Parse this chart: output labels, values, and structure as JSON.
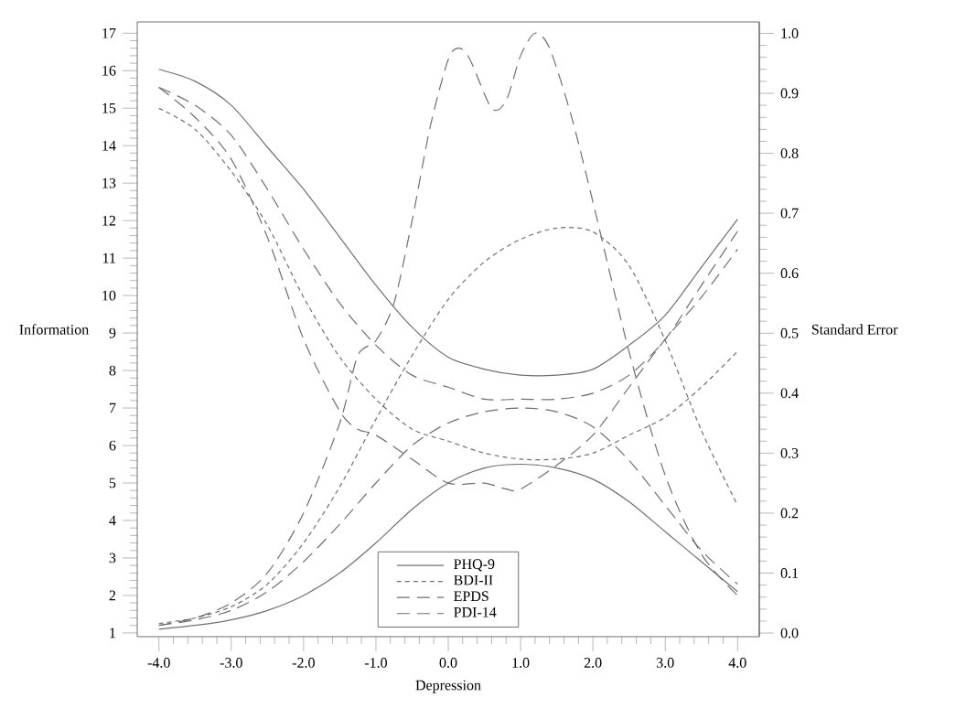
{
  "chart_data": {
    "type": "line",
    "xlabel": "Depression",
    "ylabel": "Information",
    "y2label": "Standard Error",
    "xlim": [
      -4.3,
      4.3
    ],
    "ylim": [
      0.9,
      17.3
    ],
    "y2lim": [
      -0.006,
      1.019
    ],
    "xticks": [
      {
        "value": -4,
        "label": "-4.0"
      },
      {
        "value": -3,
        "label": "-3.0"
      },
      {
        "value": -2,
        "label": "-2.0"
      },
      {
        "value": -1,
        "label": "-1.0"
      },
      {
        "value": 0,
        "label": "0.0"
      },
      {
        "value": 1,
        "label": "1.0"
      },
      {
        "value": 2,
        "label": "2.0"
      },
      {
        "value": 3,
        "label": "3.0"
      },
      {
        "value": 4,
        "label": "4.0"
      }
    ],
    "yticks": [
      1,
      2,
      3,
      4,
      5,
      6,
      7,
      8,
      9,
      10,
      11,
      12,
      13,
      14,
      15,
      16,
      17
    ],
    "y2ticks": [
      {
        "value": 0,
        "label": "0.0"
      },
      {
        "value": 0.1,
        "label": "0.1"
      },
      {
        "value": 0.2,
        "label": "0.2"
      },
      {
        "value": 0.3,
        "label": "0.3"
      },
      {
        "value": 0.4,
        "label": "0.4"
      },
      {
        "value": 0.5,
        "label": "0.5"
      },
      {
        "value": 0.6,
        "label": "0.6"
      },
      {
        "value": 0.7,
        "label": "0.7"
      },
      {
        "value": 0.8,
        "label": "0.8"
      },
      {
        "value": 0.9,
        "label": "0.9"
      },
      {
        "value": 1.0,
        "label": "1.0"
      }
    ],
    "legend": "bottom",
    "series": [
      {
        "name": "PHQ-9",
        "color": "#707070",
        "line_style": "solid",
        "x": [
          -4,
          -3.5,
          -3,
          -2.5,
          -2,
          -1.5,
          -1,
          -0.5,
          0,
          0.5,
          1,
          1.5,
          2,
          2.5,
          3,
          3.5,
          4
        ],
        "values": [
          1.1,
          1.2,
          1.35,
          1.6,
          2.0,
          2.6,
          3.4,
          4.3,
          5.0,
          5.4,
          5.5,
          5.4,
          5.1,
          4.5,
          3.7,
          2.9,
          2.1
        ]
      },
      {
        "name": "BDI-II",
        "color": "#707070",
        "line_style": "dotted",
        "x": [
          -4,
          -3.5,
          -3,
          -2.5,
          -2,
          -1.5,
          -1,
          -0.5,
          0,
          0.5,
          1,
          1.5,
          2,
          2.5,
          3,
          3.5,
          4
        ],
        "values": [
          1.25,
          1.4,
          1.7,
          2.3,
          3.4,
          4.9,
          6.7,
          8.4,
          9.9,
          10.9,
          11.5,
          11.8,
          11.7,
          10.8,
          8.8,
          6.4,
          4.4
        ]
      },
      {
        "name": "EPDS",
        "color": "#707070",
        "line_style": "dashed",
        "x": [
          -4,
          -3.5,
          -3,
          -2.5,
          -2,
          -1.5,
          -1,
          -0.5,
          0,
          0.5,
          1,
          1.5,
          2,
          2.5,
          3,
          3.5,
          4
        ],
        "values": [
          1.2,
          1.35,
          1.6,
          2.1,
          2.9,
          3.9,
          5.0,
          6.0,
          6.6,
          6.9,
          7.0,
          6.9,
          6.5,
          5.6,
          4.4,
          3.2,
          2.3
        ]
      },
      {
        "name": "PDI-14",
        "color": "#707070",
        "line_style": "dashed",
        "x": [
          -4,
          -3.5,
          -3,
          -2.5,
          -2,
          -1.5,
          -1.25,
          -1,
          -0.75,
          -0.5,
          -0.25,
          0,
          0.15,
          0.3,
          0.6,
          0.8,
          1.0,
          1.2,
          1.4,
          1.7,
          2,
          2.5,
          3,
          3.5,
          4
        ],
        "values": [
          1.2,
          1.4,
          1.8,
          2.6,
          4.2,
          6.6,
          8.4,
          8.8,
          9.8,
          12.0,
          14.5,
          16.3,
          16.6,
          16.3,
          15.0,
          15.2,
          16.4,
          17.0,
          16.6,
          14.8,
          12.5,
          8.5,
          5.2,
          3.1,
          2.0
        ]
      },
      {
        "color": "#707070",
        "line_style": "solid",
        "axis": "y2",
        "x": [
          -4,
          -3.5,
          -3,
          -2.5,
          -2,
          -1.5,
          -1,
          -0.5,
          0,
          0.5,
          1,
          1.5,
          2,
          2.5,
          3,
          3.5,
          4
        ],
        "values": [
          0.94,
          0.92,
          0.88,
          0.81,
          0.74,
          0.66,
          0.58,
          0.51,
          0.46,
          0.44,
          0.43,
          0.43,
          0.44,
          0.48,
          0.53,
          0.61,
          0.69
        ]
      },
      {
        "color": "#707070",
        "line_style": "dotted",
        "axis": "y2",
        "x": [
          -4,
          -3.5,
          -3,
          -2.5,
          -2,
          -1.5,
          -1,
          -0.5,
          0,
          0.5,
          1,
          1.5,
          2,
          2.5,
          3,
          3.5,
          4
        ],
        "values": [
          0.875,
          0.84,
          0.77,
          0.68,
          0.56,
          0.46,
          0.39,
          0.34,
          0.32,
          0.3,
          0.29,
          0.29,
          0.3,
          0.33,
          0.36,
          0.41,
          0.47
        ]
      },
      {
        "color": "#707070",
        "line_style": "dashed",
        "axis": "y2",
        "x": [
          -4,
          -3.5,
          -3,
          -2.5,
          -2,
          -1.5,
          -1,
          -0.5,
          0,
          0.5,
          1,
          1.5,
          2,
          2.5,
          3,
          3.5,
          4
        ],
        "values": [
          0.91,
          0.88,
          0.83,
          0.74,
          0.64,
          0.55,
          0.48,
          0.43,
          0.41,
          0.39,
          0.39,
          0.39,
          0.4,
          0.43,
          0.49,
          0.58,
          0.67
        ]
      },
      {
        "color": "#707070",
        "line_style": "dashed",
        "axis": "y2",
        "x": [
          -4,
          -3.5,
          -3,
          -2.5,
          -2,
          -1.5,
          -1.25,
          -1,
          -0.5,
          0,
          0.5,
          0.8,
          1,
          1.5,
          2,
          2.5,
          3,
          3.5,
          4
        ],
        "values": [
          0.91,
          0.86,
          0.79,
          0.66,
          0.49,
          0.37,
          0.34,
          0.33,
          0.29,
          0.25,
          0.25,
          0.24,
          0.24,
          0.28,
          0.33,
          0.41,
          0.49,
          0.56,
          0.64
        ]
      }
    ]
  }
}
